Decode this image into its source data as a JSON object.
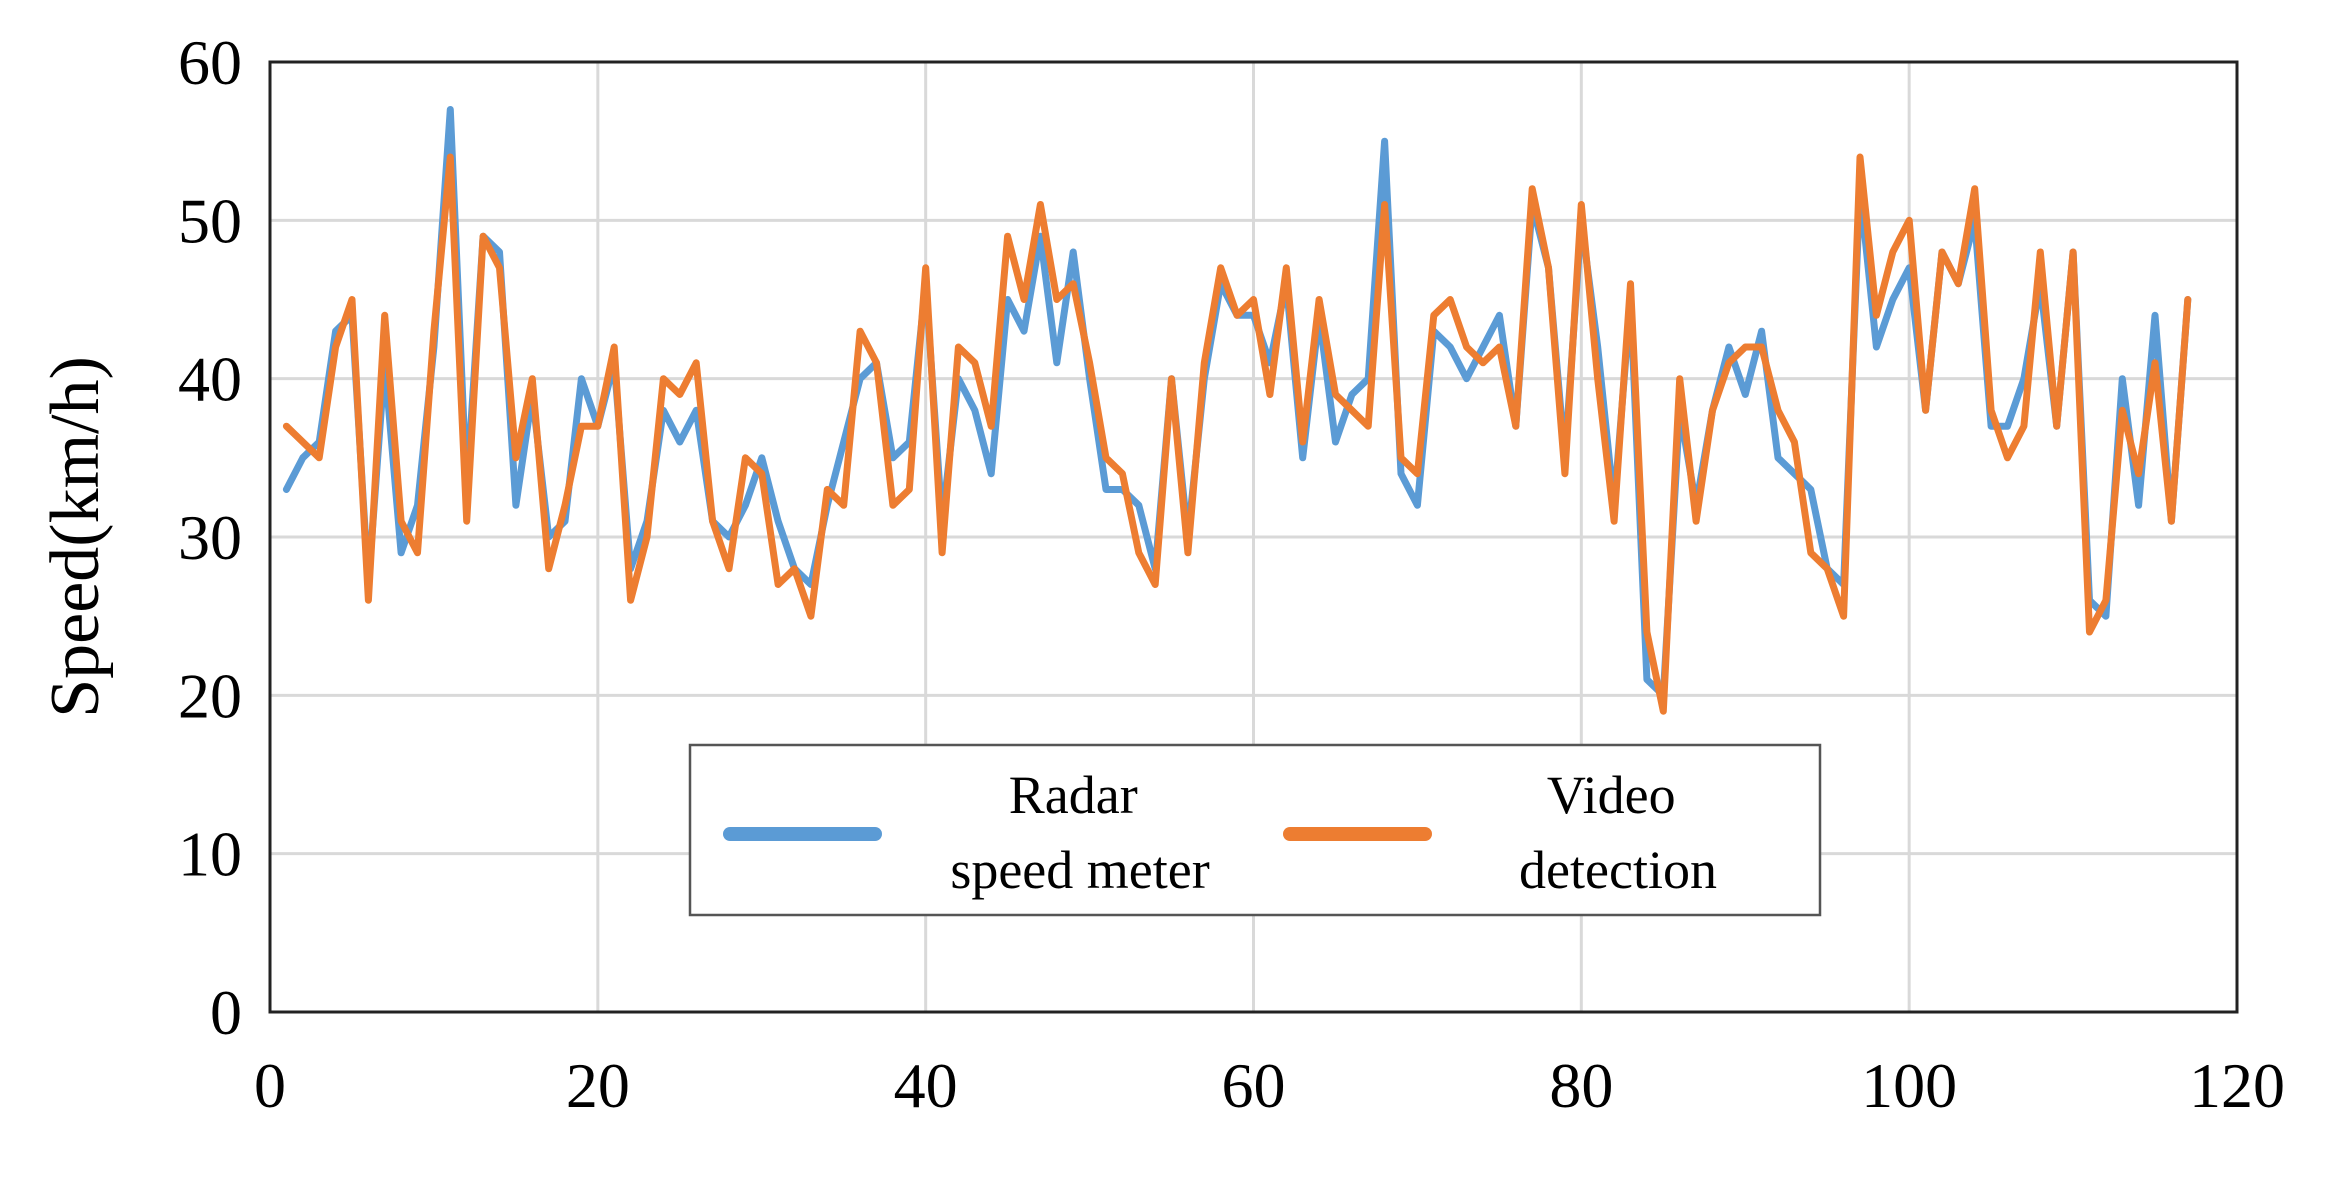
{
  "chart_data": {
    "type": "line",
    "title": "",
    "xlabel": "",
    "ylabel": "Speed(km/h)",
    "xlim": [
      0,
      120
    ],
    "ylim": [
      0,
      60
    ],
    "xticks": [
      0,
      20,
      40,
      60,
      80,
      100,
      120
    ],
    "yticks": [
      0,
      10,
      20,
      30,
      40,
      50,
      60
    ],
    "grid": true,
    "legend_position": "bottom-center",
    "series": [
      {
        "name": "Radar speed meter",
        "color": "#5b9bd5",
        "x": [
          1,
          2,
          3,
          4,
          5,
          6,
          7,
          8,
          9,
          10,
          11,
          12,
          13,
          14,
          15,
          16,
          17,
          18,
          19,
          20,
          21,
          22,
          23,
          24,
          25,
          26,
          27,
          28,
          29,
          30,
          31,
          32,
          33,
          34,
          35,
          36,
          37,
          38,
          39,
          40,
          41,
          42,
          43,
          44,
          45,
          46,
          47,
          48,
          49,
          50,
          51,
          52,
          53,
          54,
          55,
          56,
          57,
          58,
          59,
          60,
          61,
          62,
          63,
          64,
          65,
          66,
          67,
          68,
          69,
          70,
          71,
          72,
          73,
          74,
          75,
          76,
          77,
          78,
          79,
          80,
          81,
          82,
          83,
          84,
          85,
          86,
          87,
          88,
          89,
          90,
          91,
          92,
          93,
          94,
          95,
          96,
          97,
          98,
          99,
          100,
          101,
          102,
          103,
          104,
          105,
          106,
          107,
          108,
          109,
          110,
          111,
          112,
          113,
          114,
          115,
          116,
          117
        ],
        "values": [
          33,
          35,
          36,
          43,
          44,
          27,
          41,
          29,
          32,
          42,
          57,
          33,
          49,
          48,
          32,
          39,
          30,
          31,
          40,
          37,
          41,
          28,
          31,
          38,
          36,
          38,
          31,
          30,
          32,
          35,
          31,
          28,
          27,
          32,
          36,
          40,
          41,
          35,
          36,
          46,
          31,
          40,
          38,
          34,
          45,
          43,
          49,
          41,
          48,
          40,
          33,
          33,
          32,
          28,
          40,
          30,
          40,
          46,
          44,
          44,
          41,
          46,
          35,
          44,
          36,
          39,
          40,
          55,
          34,
          32,
          43,
          42,
          40,
          42,
          44,
          37,
          51,
          47,
          35,
          50,
          42,
          32,
          45,
          21,
          20,
          38,
          32,
          38,
          42,
          39,
          43,
          35,
          34,
          33,
          28,
          27,
          52,
          42,
          45,
          47,
          38,
          48,
          46,
          50,
          37,
          37,
          40,
          46,
          37,
          48,
          26,
          25,
          40,
          32,
          44,
          31,
          45
        ]
      },
      {
        "name": "Video detection",
        "color": "#ed7d31",
        "x": [
          1,
          2,
          3,
          4,
          5,
          6,
          7,
          8,
          9,
          10,
          11,
          12,
          13,
          14,
          15,
          16,
          17,
          18,
          19,
          20,
          21,
          22,
          23,
          24,
          25,
          26,
          27,
          28,
          29,
          30,
          31,
          32,
          33,
          34,
          35,
          36,
          37,
          38,
          39,
          40,
          41,
          42,
          43,
          44,
          45,
          46,
          47,
          48,
          49,
          50,
          51,
          52,
          53,
          54,
          55,
          56,
          57,
          58,
          59,
          60,
          61,
          62,
          63,
          64,
          65,
          66,
          67,
          68,
          69,
          70,
          71,
          72,
          73,
          74,
          75,
          76,
          77,
          78,
          79,
          80,
          81,
          82,
          83,
          84,
          85,
          86,
          87,
          88,
          89,
          90,
          91,
          92,
          93,
          94,
          95,
          96,
          97,
          98,
          99,
          100,
          101,
          102,
          103,
          104,
          105,
          106,
          107,
          108,
          109,
          110,
          111,
          112,
          113,
          114,
          115,
          116,
          117
        ],
        "values": [
          37,
          36,
          35,
          42,
          45,
          26,
          44,
          31,
          29,
          43,
          54,
          31,
          49,
          47,
          35,
          40,
          28,
          32,
          37,
          37,
          42,
          26,
          30,
          40,
          39,
          41,
          31,
          28,
          35,
          34,
          27,
          28,
          25,
          33,
          32,
          43,
          41,
          32,
          33,
          47,
          29,
          42,
          41,
          37,
          49,
          45,
          51,
          45,
          46,
          41,
          35,
          34,
          29,
          27,
          40,
          29,
          41,
          47,
          44,
          45,
          39,
          47,
          36,
          45,
          39,
          38,
          37,
          51,
          35,
          34,
          44,
          45,
          42,
          41,
          42,
          37,
          52,
          47,
          34,
          51,
          40,
          31,
          46,
          24,
          19,
          40,
          31,
          38,
          41,
          42,
          42,
          38,
          36,
          29,
          28,
          25,
          54,
          44,
          48,
          50,
          38,
          48,
          46,
          52,
          38,
          35,
          37,
          48,
          37,
          48,
          24,
          26,
          38,
          34,
          41,
          31,
          45
        ]
      }
    ]
  }
}
